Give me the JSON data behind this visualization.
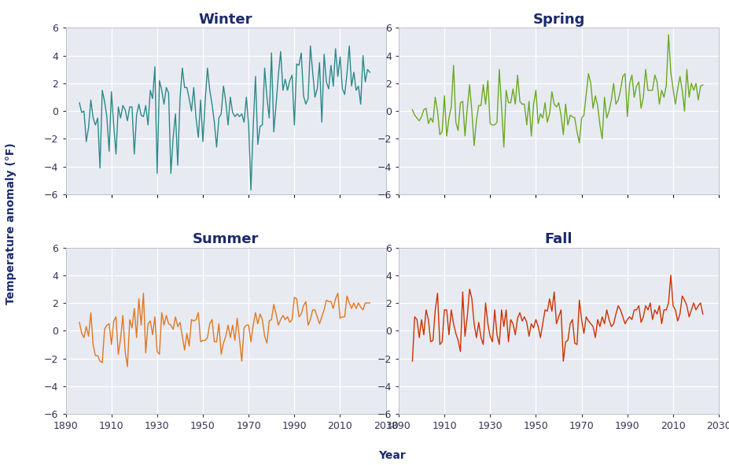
{
  "title_fontsize": 13,
  "axis_label_fontsize": 10,
  "tick_fontsize": 9,
  "ylabel": "Temperature anomaly (°F)",
  "xlabel": "Year",
  "xlim": [
    1890,
    2030
  ],
  "ylim": [
    -6,
    6
  ],
  "yticks": [
    -6,
    -4,
    -2,
    0,
    2,
    4,
    6
  ],
  "xticks": [
    1890,
    1910,
    1930,
    1950,
    1970,
    1990,
    2010,
    2030
  ],
  "background_color": "#e8eaf2",
  "fig_background": "#ffffff",
  "title_color": "#1a2a6c",
  "axis_color": "#1a2a6c",
  "tick_color": "#333355",
  "grid_color": "#ffffff",
  "seasons": [
    "Winter",
    "Spring",
    "Summer",
    "Fall"
  ],
  "colors": [
    "#2b8a8a",
    "#6aaa20",
    "#e07820",
    "#cc3300"
  ],
  "years": [
    1896,
    1897,
    1898,
    1899,
    1900,
    1901,
    1902,
    1903,
    1904,
    1905,
    1906,
    1907,
    1908,
    1909,
    1910,
    1911,
    1912,
    1913,
    1914,
    1915,
    1916,
    1917,
    1918,
    1919,
    1920,
    1921,
    1922,
    1923,
    1924,
    1925,
    1926,
    1927,
    1928,
    1929,
    1930,
    1931,
    1932,
    1933,
    1934,
    1935,
    1936,
    1937,
    1938,
    1939,
    1940,
    1941,
    1942,
    1943,
    1944,
    1945,
    1946,
    1947,
    1948,
    1949,
    1950,
    1951,
    1952,
    1953,
    1954,
    1955,
    1956,
    1957,
    1958,
    1959,
    1960,
    1961,
    1962,
    1963,
    1964,
    1965,
    1966,
    1967,
    1968,
    1969,
    1970,
    1971,
    1972,
    1973,
    1974,
    1975,
    1976,
    1977,
    1978,
    1979,
    1980,
    1981,
    1982,
    1983,
    1984,
    1985,
    1986,
    1987,
    1988,
    1989,
    1990,
    1991,
    1992,
    1993,
    1994,
    1995,
    1996,
    1997,
    1998,
    1999,
    2000,
    2001,
    2002,
    2003,
    2004,
    2005,
    2006,
    2007,
    2008,
    2009,
    2010,
    2011,
    2012,
    2013,
    2014,
    2015,
    2016,
    2017,
    2018,
    2019,
    2020,
    2021,
    2022,
    2023
  ],
  "winter": [
    0.6,
    -0.1,
    0.0,
    -2.2,
    -1.2,
    0.8,
    -0.5,
    -1.0,
    -0.5,
    -4.1,
    1.5,
    0.7,
    -0.4,
    -2.9,
    1.4,
    -1.0,
    -3.1,
    0.3,
    -0.5,
    0.4,
    0.1,
    -0.7,
    0.3,
    0.3,
    -3.1,
    -0.3,
    0.5,
    -0.3,
    -0.4,
    0.4,
    -1.0,
    1.5,
    0.9,
    3.2,
    -4.5,
    2.2,
    1.5,
    0.5,
    1.7,
    1.3,
    -4.5,
    -1.9,
    -0.2,
    -3.9,
    0.9,
    3.1,
    1.7,
    1.7,
    0.9,
    0.0,
    1.7,
    -0.5,
    -1.9,
    0.8,
    -2.2,
    0.7,
    3.1,
    1.5,
    0.5,
    -0.8,
    -2.6,
    -0.5,
    -0.2,
    1.8,
    0.7,
    -1.0,
    1.0,
    -0.1,
    -0.4,
    -0.2,
    -0.4,
    -0.2,
    -0.8,
    1.0,
    -1.0,
    -5.7,
    -1.1,
    2.5,
    -2.4,
    -1.1,
    -1.0,
    3.1,
    1.0,
    -0.5,
    4.2,
    -1.5,
    0.5,
    2.6,
    4.3,
    1.5,
    2.3,
    1.5,
    2.2,
    2.6,
    -1.0,
    3.4,
    3.3,
    4.2,
    1.1,
    0.5,
    0.9,
    4.7,
    2.8,
    1.0,
    1.6,
    3.5,
    -0.8,
    4.1,
    2.1,
    1.6,
    3.3,
    1.8,
    4.5,
    2.5,
    3.9,
    1.6,
    1.2,
    2.7,
    4.7,
    1.8,
    2.8,
    1.5,
    1.8,
    0.5,
    4.0,
    2.1,
    3.0,
    2.8
  ],
  "spring": [
    0.1,
    -0.3,
    -0.5,
    -0.7,
    -0.4,
    0.1,
    0.2,
    -0.9,
    -0.5,
    -0.8,
    1.0,
    0.0,
    -1.7,
    -1.5,
    1.1,
    -1.8,
    -0.5,
    0.3,
    3.3,
    -0.8,
    -1.4,
    0.6,
    0.7,
    -1.8,
    0.2,
    1.9,
    0.0,
    -2.5,
    -0.7,
    0.4,
    0.4,
    1.9,
    0.5,
    2.2,
    -0.9,
    -1.0,
    -1.0,
    -0.8,
    3.0,
    0.3,
    -2.6,
    1.5,
    0.6,
    0.6,
    1.6,
    0.5,
    2.6,
    0.7,
    0.5,
    0.5,
    -1.0,
    0.7,
    -1.8,
    0.5,
    1.5,
    -0.9,
    -0.2,
    -0.5,
    0.6,
    -0.8,
    -0.2,
    1.4,
    0.5,
    0.3,
    0.6,
    -0.3,
    -1.7,
    0.5,
    -1.0,
    -0.3,
    -0.4,
    -0.5,
    -1.5,
    -2.3,
    -0.5,
    -0.3,
    1.2,
    2.7,
    2.0,
    0.2,
    1.1,
    0.4,
    -1.0,
    -2.0,
    1.0,
    -0.5,
    0.0,
    0.8,
    2.0,
    0.5,
    0.8,
    1.5,
    2.5,
    2.7,
    -0.4,
    2.0,
    2.6,
    1.0,
    1.8,
    2.1,
    0.2,
    1.0,
    3.0,
    1.5,
    1.5,
    1.5,
    2.6,
    2.1,
    0.5,
    1.5,
    1.0,
    1.8,
    5.5,
    2.8,
    1.6,
    0.5,
    1.6,
    2.5,
    1.5,
    0.0,
    3.0,
    1.0,
    2.0,
    1.5,
    2.0,
    0.8,
    1.8,
    1.9
  ],
  "summer": [
    0.6,
    -0.2,
    -0.5,
    0.3,
    -0.4,
    1.3,
    -1.0,
    -1.8,
    -1.8,
    -2.2,
    -2.3,
    0.1,
    0.4,
    0.5,
    -1.0,
    0.7,
    1.0,
    -1.7,
    -0.6,
    1.1,
    -1.5,
    -2.6,
    0.8,
    0.2,
    1.6,
    -0.5,
    2.3,
    0.4,
    2.7,
    -1.6,
    0.5,
    0.7,
    -0.3,
    1.0,
    -1.5,
    -1.7,
    1.3,
    0.4,
    1.1,
    0.5,
    0.4,
    0.1,
    1.0,
    0.3,
    0.6,
    -0.4,
    -1.4,
    -0.2,
    -1.1,
    0.8,
    0.7,
    0.8,
    1.3,
    -0.8,
    -0.7,
    -0.7,
    -0.5,
    0.5,
    0.8,
    -0.8,
    -0.8,
    0.5,
    -1.7,
    -0.9,
    -0.4,
    0.4,
    -0.5,
    0.4,
    -0.7,
    0.9,
    -0.6,
    -2.2,
    0.2,
    0.4,
    0.4,
    -0.8,
    0.4,
    1.3,
    0.5,
    1.2,
    0.8,
    -0.4,
    -0.9,
    0.7,
    0.8,
    1.9,
    1.2,
    0.4,
    0.8,
    1.1,
    0.8,
    1.0,
    0.6,
    0.8,
    2.4,
    2.3,
    1.0,
    1.2,
    1.8,
    2.1,
    0.4,
    0.8,
    1.5,
    1.5,
    1.0,
    0.5,
    1.0,
    1.5,
    2.2,
    2.1,
    2.1,
    1.6,
    2.3,
    2.7,
    0.9,
    1.0,
    1.0,
    2.5,
    2.0,
    1.6,
    2.0,
    1.6,
    2.0,
    1.7,
    1.5,
    2.0,
    2.0,
    2.0
  ],
  "fall": [
    -2.2,
    1.0,
    0.8,
    -0.5,
    0.8,
    -0.3,
    1.5,
    0.8,
    -0.8,
    -0.7,
    1.5,
    2.7,
    -1.0,
    -0.8,
    1.5,
    1.5,
    -0.3,
    1.5,
    0.5,
    -0.2,
    -0.7,
    -1.5,
    2.8,
    -0.4,
    1.0,
    3.0,
    2.3,
    0.5,
    -0.5,
    0.6,
    -0.5,
    -1.0,
    2.0,
    0.5,
    -0.4,
    -0.8,
    1.5,
    -0.3,
    -1.0,
    1.5,
    0.3,
    1.5,
    -0.8,
    0.8,
    0.5,
    -0.3,
    0.9,
    1.3,
    0.7,
    1.0,
    0.6,
    -0.4,
    0.5,
    0.2,
    0.8,
    0.3,
    -0.5,
    0.5,
    1.5,
    1.4,
    2.3,
    1.4,
    2.8,
    0.5,
    1.0,
    1.5,
    -2.2,
    -0.8,
    -0.7,
    0.5,
    0.8,
    -0.9,
    -1.0,
    2.2,
    0.8,
    -0.2,
    1.0,
    0.7,
    0.5,
    0.3,
    -0.5,
    0.8,
    0.3,
    1.0,
    0.5,
    1.5,
    0.8,
    0.3,
    0.5,
    1.2,
    1.8,
    1.5,
    1.0,
    0.5,
    0.8,
    1.0,
    0.8,
    1.5,
    1.5,
    1.8,
    0.6,
    1.0,
    1.8,
    1.5,
    2.0,
    0.8,
    1.5,
    1.2,
    1.8,
    0.5,
    1.5,
    1.5,
    2.0,
    4.0,
    1.8,
    1.5,
    0.7,
    1.2,
    2.5,
    2.2,
    1.8,
    1.0,
    1.5,
    2.0,
    1.5,
    1.8,
    2.0,
    1.2
  ]
}
